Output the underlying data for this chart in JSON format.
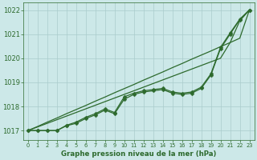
{
  "title": "Graphe pression niveau de la mer (hPa)",
  "background_color": "#cce8e8",
  "grid_color": "#aacccc",
  "line_color": "#2d6a2d",
  "ylim": [
    1016.6,
    1022.3
  ],
  "xlim": [
    0,
    23
  ],
  "yticks": [
    1017,
    1018,
    1019,
    1020,
    1021,
    1022
  ],
  "xticks": [
    0,
    1,
    2,
    3,
    4,
    5,
    6,
    7,
    8,
    9,
    10,
    11,
    12,
    13,
    14,
    15,
    16,
    17,
    18,
    19,
    20,
    21,
    22,
    23
  ],
  "line1": [
    1017.0,
    1017.0,
    1017.0,
    1017.0,
    1017.2,
    1017.3,
    1017.5,
    1017.65,
    1017.85,
    1017.7,
    1018.3,
    1018.5,
    1018.6,
    1018.65,
    1018.7,
    1018.55,
    1018.5,
    1018.55,
    1018.75,
    1019.3,
    1020.4,
    1021.0,
    1021.6,
    1022.0
  ],
  "line2": [
    1017.0,
    1017.0,
    1017.0,
    1017.0,
    1017.22,
    1017.35,
    1017.55,
    1017.7,
    1017.9,
    1017.75,
    1018.4,
    1018.55,
    1018.65,
    1018.7,
    1018.75,
    1018.6,
    1018.55,
    1018.6,
    1018.8,
    1019.35,
    1020.45,
    1021.05,
    1021.62,
    1022.0
  ],
  "line3_smooth": [
    1017.0,
    1017.17,
    1017.35,
    1017.52,
    1017.7,
    1017.87,
    1018.04,
    1018.22,
    1018.39,
    1018.57,
    1018.74,
    1018.91,
    1019.09,
    1019.26,
    1019.43,
    1019.61,
    1019.78,
    1019.96,
    1020.13,
    1020.3,
    1020.48,
    1020.65,
    1020.83,
    1022.0
  ],
  "line4_smooth": [
    1017.0,
    1017.15,
    1017.3,
    1017.45,
    1017.6,
    1017.75,
    1017.9,
    1018.05,
    1018.2,
    1018.35,
    1018.5,
    1018.65,
    1018.8,
    1018.95,
    1019.1,
    1019.25,
    1019.4,
    1019.55,
    1019.7,
    1019.85,
    1020.0,
    1020.65,
    1021.55,
    1022.0
  ],
  "marker_size": 2.5,
  "linewidth": 0.9
}
